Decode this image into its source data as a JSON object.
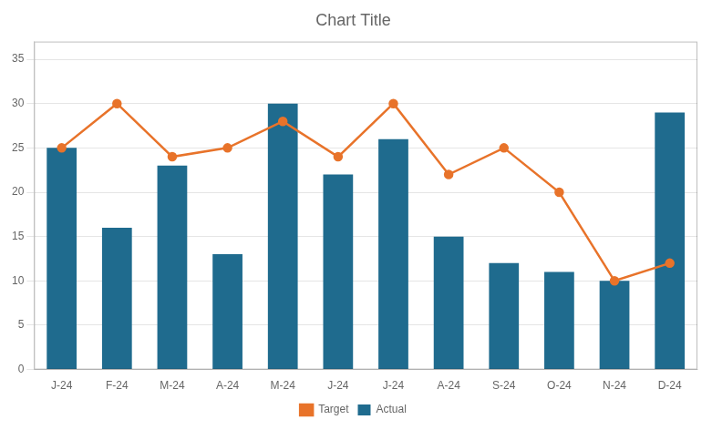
{
  "chart_data": {
    "type": "bar",
    "title": "Chart Title",
    "categories": [
      "J-24",
      "F-24",
      "M-24",
      "A-24",
      "M-24",
      "J-24",
      "J-24",
      "A-24",
      "S-24",
      "O-24",
      "N-24",
      "D-24"
    ],
    "series": [
      {
        "name": "Actual",
        "type": "bar",
        "color": "#1f6b8e",
        "values": [
          25,
          16,
          23,
          13,
          30,
          22,
          26,
          15,
          12,
          11,
          10,
          29
        ]
      },
      {
        "name": "Target",
        "type": "line",
        "color": "#e8732a",
        "marker": "circle",
        "values": [
          25,
          30,
          24,
          25,
          28,
          24,
          30,
          22,
          25,
          20,
          10,
          12
        ]
      }
    ],
    "ylim": [
      0,
      37
    ],
    "yticks": [
      0,
      5,
      10,
      15,
      20,
      25,
      30,
      35
    ],
    "grid": "y",
    "legend": "bottom"
  }
}
